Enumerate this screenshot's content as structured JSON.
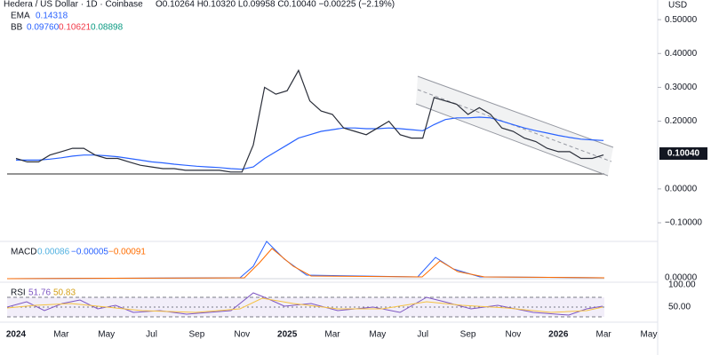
{
  "header": {
    "title": "Hedera / US Dollar · 1D · Coinbase",
    "ohlc": "O0.10264 H0.10320 L0.09958 C0.10040 −0.00225 (−2.19%)",
    "ema_label": "EMA",
    "ema_value": "0.14318",
    "bb_label": "BB",
    "bb_values": [
      "0.09760",
      "0.10621",
      "0.08898"
    ]
  },
  "currency": "USD",
  "last_price_label": "0.10040",
  "chart_data": {
    "type": "line",
    "categories": [
      "2024",
      null,
      null,
      null,
      "Mar",
      null,
      null,
      null,
      "May",
      null,
      null,
      null,
      "Jul",
      null,
      null,
      null,
      "Sep",
      null,
      null,
      null,
      "Nov",
      null,
      null,
      null,
      "2025",
      null,
      null,
      null,
      "Mar",
      null,
      null,
      null,
      "May",
      null,
      null,
      null,
      "Jul",
      null,
      null,
      null,
      "Sep",
      null,
      null,
      null,
      "Nov",
      null,
      null,
      null,
      "2026",
      null,
      null,
      null,
      "Mar",
      null,
      null,
      null,
      "May"
    ],
    "values": [
      0.09,
      0.08,
      0.08,
      0.1,
      0.11,
      0.12,
      0.12,
      0.1,
      0.09,
      0.09,
      0.08,
      0.07,
      0.065,
      0.06,
      0.06,
      0.055,
      0.055,
      0.055,
      0.055,
      0.05,
      0.05,
      0.13,
      0.3,
      0.28,
      0.29,
      0.35,
      0.26,
      0.23,
      0.22,
      0.18,
      0.17,
      0.16,
      0.18,
      0.2,
      0.16,
      0.15,
      0.15,
      0.27,
      0.26,
      0.25,
      0.22,
      0.24,
      0.22,
      0.18,
      0.17,
      0.15,
      0.14,
      0.12,
      0.11,
      0.11,
      0.09,
      0.09,
      0.1004,
      null,
      null,
      null,
      null
    ],
    "color": "#2a2e39",
    "series": [
      {
        "name": "EMA",
        "color": "#2962ff",
        "values": [
          0.085,
          0.085,
          0.085,
          0.088,
          0.092,
          0.097,
          0.1,
          0.1,
          0.098,
          0.095,
          0.09,
          0.085,
          0.08,
          0.077,
          0.073,
          0.07,
          0.067,
          0.065,
          0.063,
          0.06,
          0.058,
          0.065,
          0.09,
          0.11,
          0.13,
          0.15,
          0.16,
          0.17,
          0.175,
          0.18,
          0.18,
          0.178,
          0.178,
          0.18,
          0.178,
          0.175,
          0.172,
          0.19,
          0.205,
          0.21,
          0.21,
          0.212,
          0.21,
          0.2,
          0.19,
          0.18,
          0.172,
          0.165,
          0.158,
          0.152,
          0.147,
          0.145,
          0.143,
          null,
          null,
          null,
          null
        ]
      }
    ],
    "ylim": [
      -0.155,
      0.558
    ],
    "yticks": [
      {
        "value": 0.5,
        "label": "0.50000"
      },
      {
        "value": 0.4,
        "label": "0.40000"
      },
      {
        "value": 0.3,
        "label": "0.30000"
      },
      {
        "value": 0.2,
        "label": "0.20000"
      },
      {
        "value": 0,
        "label": "0.00000"
      },
      {
        "value": -0.1,
        "label": "−0.10000"
      }
    ]
  },
  "macd": {
    "label": "MACD",
    "values": [
      "0.00086",
      "−0.00005",
      "−0.00091"
    ],
    "axis_label": "0.00000"
  },
  "rsi": {
    "label": "RSI",
    "values": [
      "51.76",
      "50.83"
    ],
    "axis_labels": [
      "100.00",
      "50.00"
    ]
  }
}
